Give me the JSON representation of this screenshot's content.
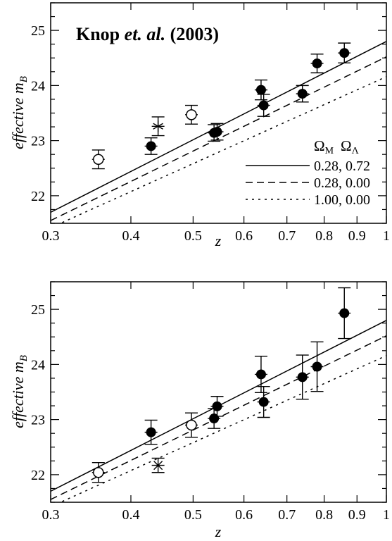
{
  "chart_data": [
    {
      "type": "scatter",
      "title": "Knop et. al. (2003)",
      "title_parts": [
        "Knop ",
        "et. al.",
        " (2003)"
      ],
      "xlabel": "z",
      "ylabel": "effective m",
      "ylabel_sub": "B",
      "x_scale": "log",
      "xlim": [
        0.3,
        1.0
      ],
      "ylim": [
        21.5,
        25.5
      ],
      "x_ticks": [
        0.3,
        0.4,
        0.5,
        0.6,
        0.7,
        0.8,
        0.9,
        1.0
      ],
      "x_tick_labels": [
        "0.3",
        "0.4",
        "0.5",
        "0.6",
        "0.7",
        "0.8",
        "0.9",
        "1"
      ],
      "y_ticks": [
        22,
        23,
        24,
        25
      ],
      "y_tick_labels": [
        "22",
        "23",
        "24",
        "25"
      ],
      "legend": {
        "placement": "right",
        "header_1": "Ω",
        "header_1_sub": "M",
        "header_2": "Ω",
        "header_2_sub": "Λ",
        "entries": [
          {
            "style": "solid",
            "label": "0.28, 0.72"
          },
          {
            "style": "dashed",
            "label": "0.28, 0.00"
          },
          {
            "style": "dotted",
            "label": "1.00, 0.00"
          }
        ]
      },
      "curves": [
        {
          "style": "solid",
          "x": [
            0.3,
            1.0
          ],
          "y": [
            21.7,
            24.8
          ]
        },
        {
          "style": "dashed",
          "x": [
            0.3,
            1.0
          ],
          "y": [
            21.55,
            24.52
          ]
        },
        {
          "style": "dotted",
          "x": [
            0.3,
            1.0
          ],
          "y": [
            21.42,
            24.16
          ]
        }
      ],
      "points": [
        {
          "x": 0.356,
          "y": 22.66,
          "err": 0.17,
          "marker": "open"
        },
        {
          "x": 0.43,
          "y": 22.9,
          "err": 0.15,
          "marker": "filled"
        },
        {
          "x": 0.441,
          "y": 23.26,
          "err": 0.17,
          "marker": "asterisk"
        },
        {
          "x": 0.497,
          "y": 23.47,
          "err": 0.17,
          "marker": "open"
        },
        {
          "x": 0.539,
          "y": 23.14,
          "err": 0.15,
          "marker": "filled"
        },
        {
          "x": 0.545,
          "y": 23.16,
          "err": 0.15,
          "marker": "filled"
        },
        {
          "x": 0.638,
          "y": 23.92,
          "err": 0.18,
          "marker": "filled"
        },
        {
          "x": 0.644,
          "y": 23.64,
          "err": 0.2,
          "marker": "filled"
        },
        {
          "x": 0.74,
          "y": 23.85,
          "err": 0.15,
          "marker": "filled"
        },
        {
          "x": 0.78,
          "y": 24.4,
          "err": 0.17,
          "marker": "filled"
        },
        {
          "x": 0.86,
          "y": 24.59,
          "err": 0.18,
          "marker": "filled"
        }
      ]
    },
    {
      "type": "scatter",
      "title": "",
      "xlabel": "z",
      "ylabel": "effective m",
      "ylabel_sub": "B",
      "x_scale": "log",
      "xlim": [
        0.3,
        1.0
      ],
      "ylim": [
        21.5,
        25.5
      ],
      "x_ticks": [
        0.3,
        0.4,
        0.5,
        0.6,
        0.7,
        0.8,
        0.9,
        1.0
      ],
      "x_tick_labels": [
        "0.3",
        "0.4",
        "0.5",
        "0.6",
        "0.7",
        "0.8",
        "0.9",
        "1"
      ],
      "y_ticks": [
        22,
        23,
        24,
        25
      ],
      "y_tick_labels": [
        "22",
        "23",
        "24",
        "25"
      ],
      "curves": [
        {
          "style": "solid",
          "x": [
            0.3,
            1.0
          ],
          "y": [
            21.7,
            24.8
          ]
        },
        {
          "style": "dashed",
          "x": [
            0.3,
            1.0
          ],
          "y": [
            21.55,
            24.52
          ]
        },
        {
          "style": "dotted",
          "x": [
            0.3,
            1.0
          ],
          "y": [
            21.42,
            24.16
          ]
        }
      ],
      "points": [
        {
          "x": 0.356,
          "y": 22.04,
          "err": 0.18,
          "marker": "open"
        },
        {
          "x": 0.43,
          "y": 22.77,
          "err": 0.22,
          "marker": "filled"
        },
        {
          "x": 0.441,
          "y": 22.17,
          "err": 0.13,
          "marker": "cross"
        },
        {
          "x": 0.497,
          "y": 22.9,
          "err": 0.22,
          "marker": "open"
        },
        {
          "x": 0.539,
          "y": 23.02,
          "err": 0.18,
          "marker": "filled"
        },
        {
          "x": 0.545,
          "y": 23.24,
          "err": 0.18,
          "marker": "filled"
        },
        {
          "x": 0.638,
          "y": 23.82,
          "err": 0.33,
          "marker": "filled"
        },
        {
          "x": 0.644,
          "y": 23.32,
          "err": 0.28,
          "marker": "filled"
        },
        {
          "x": 0.74,
          "y": 23.77,
          "err": 0.4,
          "marker": "filled"
        },
        {
          "x": 0.78,
          "y": 23.96,
          "err": 0.45,
          "marker": "filled"
        },
        {
          "x": 0.86,
          "y": 24.93,
          "err": 0.46,
          "marker": "filled"
        }
      ]
    }
  ]
}
